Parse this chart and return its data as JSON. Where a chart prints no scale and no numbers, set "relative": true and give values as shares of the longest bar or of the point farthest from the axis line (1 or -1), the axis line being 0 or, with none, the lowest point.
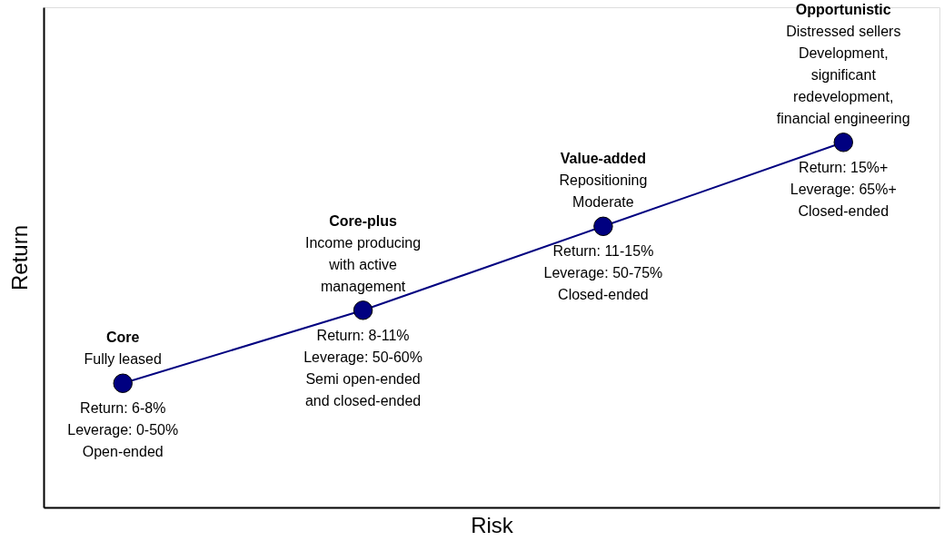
{
  "chart_data": {
    "type": "line",
    "xlabel": "Risk",
    "ylabel": "Return",
    "relative": true,
    "tick_labels": false,
    "marker": "circle",
    "line_style": "solid",
    "categories": [
      null,
      null,
      null,
      null
    ],
    "series": [
      {
        "color": "#000080",
        "values": [
          0.34,
          0.54,
          0.77,
          1.0
        ]
      }
    ],
    "annotations": [
      "Core",
      "Fully leased",
      "Return: 6-8%\nLeverage: 0-50%\nOpen-ended",
      "Core-plus",
      "Income producing\nwith active\nmanagement",
      "Return: 8-11%\nLeverage: 50-60%\nSemi open-ended\nand closed-ended",
      "Value-added",
      "Repositioning\nModerate",
      "Return: 11-15%\nLeverage: 50-75%\nClosed-ended",
      "Opportunistic",
      "Distressed sellers\nDevelopment,\nsignificant\nredevelopment,\nfinancial engineering",
      "Return: 15%+\nLeverage: 65%+\nClosed-ended"
    ]
  }
}
